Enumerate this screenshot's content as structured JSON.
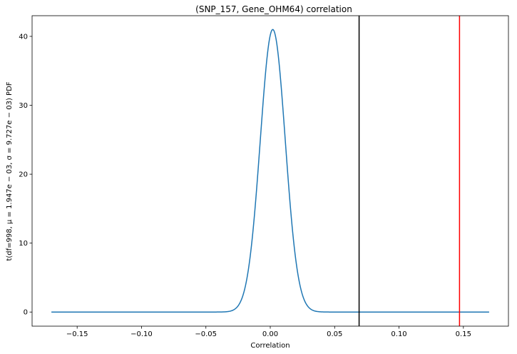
{
  "chart_data": {
    "type": "line",
    "title": "(SNP_157, Gene_OHM64) correlation",
    "xlabel": "Correlation",
    "ylabel": "t(df=998, μ = 1.947e − 03, σ = 9.727e − 03) PDF",
    "xlim": [
      -0.185,
      0.185
    ],
    "ylim": [
      -2.05,
      43.0
    ],
    "x_ticks": [
      -0.15,
      -0.1,
      -0.05,
      0.0,
      0.05,
      0.1,
      0.15
    ],
    "x_tick_labels": [
      "−0.15",
      "−0.10",
      "−0.05",
      "0.00",
      "0.05",
      "0.10",
      "0.15"
    ],
    "y_ticks": [
      0,
      10,
      20,
      30,
      40
    ],
    "y_tick_labels": [
      "0",
      "10",
      "20",
      "30",
      "40"
    ],
    "grid": false,
    "series": [
      {
        "distribution": "student-t",
        "df": 998,
        "mu": 0.001947,
        "sigma": 0.009727,
        "x_range": [
          -0.17,
          0.17
        ],
        "color": "#1f77b4"
      }
    ],
    "vlines": [
      {
        "x": 0.069,
        "color": "#000000"
      },
      {
        "x": 0.147,
        "color": "#ff0000"
      }
    ]
  }
}
